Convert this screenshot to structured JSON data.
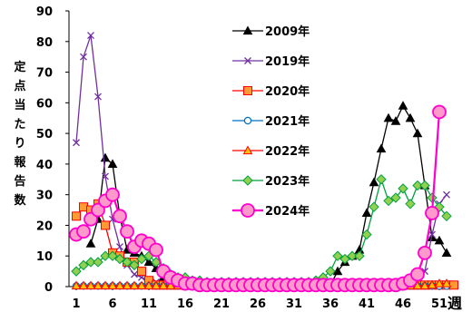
{
  "chart_data": {
    "type": "line",
    "ylabel": "定点当たり報告数",
    "xunit": "週",
    "ylim": [
      0,
      90
    ],
    "yticks": [
      0,
      10,
      20,
      30,
      40,
      50,
      60,
      70,
      80,
      90
    ],
    "xlim": [
      0,
      53
    ],
    "xticks": [
      1,
      6,
      11,
      16,
      21,
      26,
      31,
      36,
      41,
      46,
      51
    ],
    "legend_position": "center",
    "grid": false,
    "series": [
      {
        "name": "2009年",
        "color": "#000000",
        "marker": "triangle-up",
        "x": [
          3,
          4,
          5,
          6,
          7,
          8,
          9,
          10,
          11,
          12,
          13,
          14,
          15,
          16,
          17,
          18,
          19,
          20,
          21,
          22,
          23,
          24,
          25,
          26,
          27,
          28,
          29,
          30,
          31,
          32,
          33,
          34,
          35,
          36,
          37,
          38,
          39,
          40,
          41,
          42,
          43,
          44,
          45,
          46,
          47,
          48,
          49,
          50,
          51,
          52
        ],
        "values": [
          14,
          22,
          42,
          40,
          23,
          12,
          11,
          10,
          8,
          6,
          3,
          1,
          1,
          0.5,
          0.5,
          0.5,
          0.5,
          0.5,
          0.5,
          0.5,
          0.5,
          0.5,
          0.5,
          0.5,
          0.5,
          0.5,
          0.5,
          0.5,
          0.5,
          0.5,
          0.5,
          0.5,
          0.5,
          0.5,
          5,
          8,
          10,
          12,
          24,
          34,
          45,
          55,
          54,
          59,
          55,
          50,
          33,
          16,
          15,
          11
        ]
      },
      {
        "name": "2019年",
        "color": "#7030A0",
        "marker": "x",
        "x": [
          1,
          2,
          3,
          4,
          5,
          6,
          7,
          8,
          9,
          10,
          11,
          12,
          13,
          14,
          15,
          16,
          17,
          18,
          19,
          20,
          21,
          22,
          23,
          24,
          25,
          26,
          27,
          28,
          29,
          30,
          31,
          32,
          33,
          34,
          35,
          36,
          37,
          38,
          39,
          40,
          41,
          42,
          43,
          44,
          45,
          46,
          47,
          48,
          49,
          50,
          51,
          52
        ],
        "values": [
          47,
          75,
          82,
          62,
          36,
          22,
          13,
          7,
          4,
          3,
          2,
          1.5,
          1,
          0.5,
          0.5,
          0.5,
          0.5,
          0.5,
          0.5,
          0.5,
          0.5,
          0.5,
          0.5,
          0.5,
          0.5,
          0.5,
          0.5,
          0.5,
          0.5,
          0.5,
          0.5,
          0.5,
          0.5,
          0.5,
          0.5,
          0.5,
          0.5,
          0.5,
          0.5,
          0.5,
          0.5,
          0.5,
          0.5,
          0.5,
          0.5,
          0.5,
          0.5,
          1,
          5,
          17,
          27,
          30
        ]
      },
      {
        "name": "2020年",
        "color": "#FF0000",
        "fill": "#FF9933",
        "marker": "square",
        "x": [
          1,
          2,
          3,
          4,
          5,
          6,
          7,
          8,
          9,
          10,
          11,
          12,
          13,
          14,
          15,
          16,
          17,
          18,
          19,
          20,
          21,
          22,
          23,
          24,
          25,
          26,
          27,
          28,
          29,
          30,
          31,
          32,
          33,
          34,
          35,
          36,
          37,
          38,
          39,
          40,
          41,
          42,
          43,
          44,
          45,
          46,
          47,
          48,
          49,
          50,
          51,
          52,
          53
        ],
        "values": [
          23,
          26,
          25,
          27,
          20,
          11,
          10,
          8,
          8,
          5,
          2,
          0.5,
          0.5,
          0.5,
          0.5,
          0.5,
          0.5,
          0.5,
          0.5,
          0.5,
          0.5,
          0.5,
          0.5,
          0.5,
          0.5,
          0.5,
          0.5,
          0.5,
          0.5,
          0.5,
          0.5,
          0.5,
          0.5,
          0.5,
          0.5,
          0.5,
          0.5,
          0.5,
          0.5,
          0.5,
          0.5,
          0.5,
          0.5,
          0.5,
          0.5,
          0.5,
          0.5,
          0.5,
          0.5,
          0.5,
          0.5,
          0.5,
          0.5
        ]
      },
      {
        "name": "2021年",
        "color": "#0070C0",
        "fill": "#FFFFFF",
        "marker": "circle",
        "x": [
          1,
          2,
          3,
          4,
          5,
          6,
          7,
          8,
          9,
          10,
          11,
          12,
          13,
          14,
          15,
          16,
          17,
          18,
          19,
          20,
          21,
          22,
          23,
          24,
          25,
          26,
          27,
          28,
          29,
          30,
          31,
          32,
          33,
          34,
          35,
          36,
          37,
          38,
          39,
          40,
          41,
          42,
          43,
          44,
          45,
          46,
          47,
          48,
          49,
          50,
          51,
          52
        ],
        "values": [
          0.2,
          0.2,
          0.2,
          0.2,
          0.2,
          0.2,
          0.2,
          0.2,
          0.2,
          0.2,
          0.2,
          0.2,
          0.2,
          0.2,
          0.2,
          0.2,
          0.2,
          0.2,
          0.2,
          0.2,
          0.2,
          0.2,
          0.2,
          0.2,
          0.2,
          0.2,
          0.2,
          0.2,
          0.2,
          0.2,
          0.2,
          0.2,
          0.2,
          0.2,
          0.2,
          0.2,
          0.2,
          0.2,
          0.2,
          0.2,
          0.2,
          0.2,
          0.2,
          0.2,
          0.2,
          0.2,
          0.2,
          0.2,
          0.2,
          0.2,
          0.2,
          0.2
        ]
      },
      {
        "name": "2022年",
        "color": "#FF0000",
        "fill": "#FFC000",
        "marker": "triangle-up",
        "x": [
          1,
          2,
          3,
          4,
          5,
          6,
          7,
          8,
          9,
          10,
          11,
          12,
          13,
          14,
          15,
          16,
          17,
          18,
          19,
          20,
          21,
          22,
          23,
          24,
          25,
          26,
          27,
          28,
          29,
          30,
          31,
          32,
          33,
          34,
          35,
          36,
          37,
          38,
          39,
          40,
          41,
          42,
          43,
          44,
          45,
          46,
          47,
          48,
          49,
          50,
          51,
          52
        ],
        "values": [
          0.3,
          0.3,
          0.3,
          0.3,
          0.3,
          0.3,
          0.3,
          0.3,
          0.3,
          0.3,
          0.3,
          0.3,
          0.3,
          0.3,
          0.3,
          0.3,
          0.3,
          0.3,
          0.3,
          0.3,
          0.3,
          0.3,
          0.3,
          0.3,
          0.3,
          0.3,
          0.3,
          0.3,
          0.3,
          0.3,
          0.3,
          0.3,
          0.3,
          0.3,
          0.3,
          0.3,
          0.3,
          0.3,
          0.3,
          0.3,
          0.3,
          0.3,
          0.3,
          0.3,
          0.3,
          0.3,
          0.3,
          0.3,
          0.3,
          0.5,
          1,
          1
        ]
      },
      {
        "name": "2023年",
        "color": "#00A040",
        "fill": "#92D050",
        "marker": "diamond",
        "x": [
          1,
          2,
          3,
          4,
          5,
          6,
          7,
          8,
          9,
          10,
          11,
          12,
          13,
          14,
          15,
          16,
          17,
          18,
          19,
          20,
          21,
          22,
          23,
          24,
          25,
          26,
          27,
          28,
          29,
          30,
          31,
          32,
          33,
          34,
          35,
          36,
          37,
          38,
          39,
          40,
          41,
          42,
          43,
          44,
          45,
          46,
          47,
          48,
          49,
          50,
          51,
          52
        ],
        "values": [
          5,
          7,
          8,
          8,
          10,
          10,
          9,
          8,
          7,
          9,
          10,
          8,
          6,
          4,
          3,
          3,
          2,
          2,
          1.5,
          1.5,
          1.5,
          1.5,
          1.5,
          1.5,
          1.5,
          1.5,
          1.5,
          1.5,
          1.5,
          1.5,
          1.5,
          1.5,
          1.5,
          2,
          3,
          5,
          10,
          9,
          10,
          10,
          17,
          26,
          35,
          28,
          29,
          32,
          27,
          33,
          33,
          29,
          26,
          23
        ]
      },
      {
        "name": "2024年",
        "color": "#FF00CC",
        "fill": "#FF99CC",
        "marker": "circle-large",
        "x": [
          1,
          2,
          3,
          4,
          5,
          6,
          7,
          8,
          9,
          10,
          11,
          12,
          13,
          14,
          15,
          16,
          17,
          18,
          19,
          20,
          21,
          22,
          23,
          24,
          25,
          26,
          27,
          28,
          29,
          30,
          31,
          32,
          33,
          34,
          35,
          36,
          37,
          38,
          39,
          40,
          41,
          42,
          43,
          44,
          45,
          46,
          47,
          48,
          49,
          50,
          51
        ],
        "values": [
          17,
          18,
          22,
          25,
          28,
          30,
          23,
          18,
          13,
          15,
          14,
          12,
          5,
          3,
          2,
          1,
          1,
          0.5,
          0.5,
          0.5,
          0.5,
          0.5,
          0.5,
          0.5,
          0.5,
          0.5,
          0.5,
          0.5,
          0.5,
          0.5,
          0.5,
          0.5,
          0.5,
          0.5,
          0.5,
          0.5,
          0.5,
          0.5,
          0.5,
          0.5,
          0.5,
          0.5,
          0.5,
          0.5,
          0.5,
          1,
          2,
          4,
          11,
          24,
          57
        ]
      }
    ]
  }
}
